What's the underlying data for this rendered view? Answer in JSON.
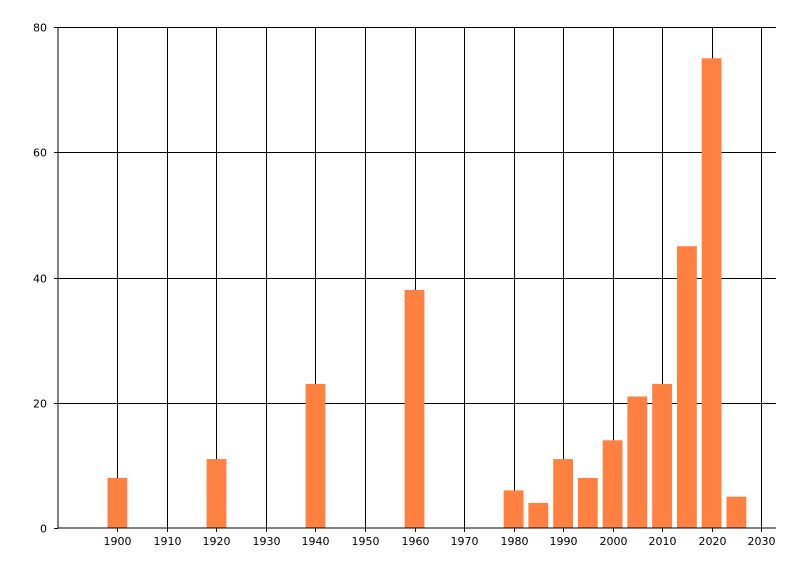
{
  "chart_data": {
    "type": "bar",
    "x": [
      1900,
      1920,
      1940,
      1960,
      1980,
      1985,
      1990,
      1995,
      2000,
      2005,
      2010,
      2015,
      2020,
      2025
    ],
    "values": [
      8,
      11,
      23,
      38,
      6,
      4,
      11,
      8,
      14,
      21,
      23,
      45,
      75,
      5
    ],
    "xlim": [
      1888,
      2033
    ],
    "ylim": [
      0,
      80
    ],
    "x_ticks": [
      "1900",
      "1910",
      "1920",
      "1930",
      "1940",
      "1950",
      "1960",
      "1970",
      "1980",
      "1990",
      "2000",
      "2010",
      "2020",
      "2030"
    ],
    "y_ticks": [
      "0",
      "20",
      "40",
      "60",
      "80"
    ],
    "bar_width_years": 4,
    "bar_color": "#ff8040",
    "grid": true,
    "legend": "none"
  }
}
